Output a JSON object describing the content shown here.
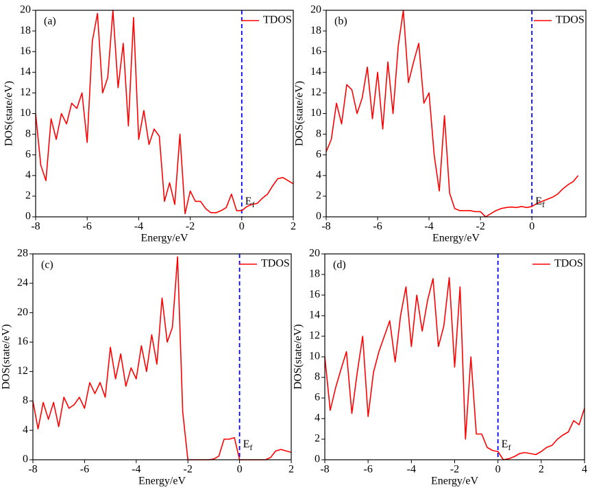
{
  "chart_data": [
    {
      "type": "line",
      "panel_label": "(a)",
      "xlabel": "Energy/eV",
      "ylabel": "DOS(state/eV)",
      "fermi_level": 0,
      "fermi_label": {
        "text": "E",
        "subscript": "f"
      },
      "xlim": [
        -8,
        2
      ],
      "ylim": [
        0,
        20
      ],
      "xticks": [
        -8,
        -6,
        -4,
        -2,
        0,
        2
      ],
      "yticks": [
        0,
        2,
        4,
        6,
        8,
        10,
        12,
        14,
        16,
        18,
        20
      ],
      "legend": "upper right",
      "series": [
        {
          "name": "TDOS",
          "color": "#ff0000",
          "x": [
            -8,
            -7.8,
            -7.6,
            -7.4,
            -7.2,
            -7,
            -6.8,
            -6.6,
            -6.4,
            -6.2,
            -6,
            -5.8,
            -5.6,
            -5.4,
            -5.2,
            -5,
            -4.8,
            -4.6,
            -4.4,
            -4.2,
            -4,
            -3.8,
            -3.6,
            -3.4,
            -3.2,
            -3,
            -2.8,
            -2.6,
            -2.4,
            -2.2,
            -2,
            -1.8,
            -1.6,
            -1.4,
            -1.2,
            -1,
            -0.8,
            -0.6,
            -0.4,
            -0.2,
            0,
            0.2,
            0.4,
            0.6,
            0.8,
            1,
            1.2,
            1.4,
            1.6,
            1.8,
            2
          ],
          "values": [
            10,
            5,
            3.5,
            9.5,
            7.5,
            10,
            9,
            11,
            10.5,
            12,
            7.2,
            17,
            19.7,
            12,
            13.5,
            20,
            12.5,
            16.8,
            8.8,
            19.3,
            7.5,
            10.3,
            7,
            8.5,
            7.8,
            1.5,
            3.3,
            1.2,
            8,
            0.3,
            2.5,
            1.5,
            1.5,
            0.8,
            0.4,
            0.4,
            0.6,
            0.9,
            2.2,
            0.6,
            0.6,
            1.0,
            1.2,
            1.3,
            1.8,
            2.2,
            3.0,
            3.7,
            3.8,
            3.5,
            3.2
          ]
        }
      ]
    },
    {
      "type": "line",
      "panel_label": "(b)",
      "xlabel": "Energy/eV",
      "ylabel": "DOS(state/eV)",
      "fermi_level": 0,
      "fermi_label": {
        "text": "E",
        "subscript": "f"
      },
      "xlim": [
        -8,
        2.1
      ],
      "ylim": [
        0,
        20
      ],
      "xticks": [
        -8,
        -6,
        -4,
        -2,
        0
      ],
      "yticks": [
        0,
        2,
        4,
        6,
        8,
        10,
        12,
        14,
        16,
        18,
        20
      ],
      "legend": "upper right",
      "series": [
        {
          "name": "TDOS",
          "color": "#ff0000",
          "x": [
            -8,
            -7.8,
            -7.6,
            -7.4,
            -7.2,
            -7,
            -6.8,
            -6.6,
            -6.4,
            -6.2,
            -6,
            -5.8,
            -5.6,
            -5.4,
            -5.2,
            -5,
            -4.8,
            -4.6,
            -4.4,
            -4.2,
            -4,
            -3.8,
            -3.6,
            -3.4,
            -3.2,
            -3,
            -2.8,
            -2.6,
            -2.4,
            -2.2,
            -2,
            -1.8,
            -1.6,
            -1.4,
            -1.2,
            -1,
            -0.8,
            -0.6,
            -0.4,
            -0.2,
            0,
            0.2,
            0.4,
            0.6,
            0.8,
            1,
            1.2,
            1.4,
            1.6,
            1.8
          ],
          "values": [
            6.3,
            7.5,
            11,
            9,
            12.8,
            12.3,
            10,
            11.5,
            14.5,
            9.5,
            14,
            8.5,
            15,
            10,
            16.5,
            20,
            13,
            15,
            16.8,
            11,
            12,
            6,
            2.5,
            9.8,
            2.3,
            0.8,
            0.6,
            0.6,
            0.6,
            0.5,
            0.5,
            0,
            0.3,
            0.6,
            0.8,
            0.9,
            0.95,
            0.9,
            1.0,
            0.9,
            1.0,
            1.3,
            1.5,
            1.7,
            1.9,
            2.2,
            2.7,
            3.1,
            3.4,
            4.0
          ]
        }
      ]
    },
    {
      "type": "line",
      "panel_label": "(c)",
      "xlabel": "Energy/eV",
      "ylabel": "DOS(state/eV)",
      "fermi_level": 0,
      "fermi_label": {
        "text": "E",
        "subscript": "f"
      },
      "xlim": [
        -8,
        2
      ],
      "ylim": [
        0,
        28
      ],
      "xticks": [
        -8,
        -6,
        -4,
        -2,
        0,
        2
      ],
      "yticks": [
        0,
        4,
        8,
        12,
        16,
        20,
        24,
        28
      ],
      "legend": "upper right",
      "series": [
        {
          "name": "TDOS",
          "color": "#ff0000",
          "x": [
            -8,
            -7.8,
            -7.6,
            -7.4,
            -7.2,
            -7,
            -6.8,
            -6.6,
            -6.4,
            -6.2,
            -6,
            -5.8,
            -5.6,
            -5.4,
            -5.2,
            -5,
            -4.8,
            -4.6,
            -4.4,
            -4.2,
            -4,
            -3.8,
            -3.6,
            -3.4,
            -3.2,
            -3,
            -2.8,
            -2.6,
            -2.4,
            -2.2,
            -2,
            -1.8,
            -1.6,
            -1.4,
            -1.2,
            -1,
            -0.8,
            -0.6,
            -0.4,
            -0.2,
            0,
            0.2,
            0.4,
            0.6,
            0.8,
            1,
            1.2,
            1.4,
            1.6,
            1.8,
            2
          ],
          "values": [
            8,
            4.2,
            7.8,
            5.5,
            7.8,
            4.5,
            8.5,
            7,
            7.5,
            8.5,
            7,
            10.5,
            9,
            10.5,
            8.5,
            15.3,
            11,
            14.4,
            10,
            12.5,
            11,
            15.5,
            12,
            17,
            13,
            22,
            16,
            18,
            27.6,
            6.5,
            0,
            0,
            0,
            0,
            0,
            0.1,
            0.5,
            2.8,
            2.8,
            3.0,
            0,
            0,
            0,
            0,
            0,
            0,
            0.3,
            1.2,
            1.4,
            1.2,
            1.0
          ]
        }
      ]
    },
    {
      "type": "line",
      "panel_label": "(d)",
      "xlabel": "Energy/eV",
      "ylabel": "DOS(state/eV)",
      "fermi_level": 0,
      "fermi_label": {
        "text": "E",
        "subscript": "f"
      },
      "xlim": [
        -8,
        4
      ],
      "ylim": [
        0,
        20
      ],
      "xticks": [
        -8,
        -6,
        -4,
        -2,
        0,
        2,
        4
      ],
      "yticks": [
        0,
        2,
        4,
        6,
        8,
        10,
        12,
        14,
        16,
        18,
        20
      ],
      "legend": "upper right",
      "series": [
        {
          "name": "TDOS",
          "color": "#ff0000",
          "x": [
            -8,
            -7.75,
            -7.5,
            -7.25,
            -7,
            -6.75,
            -6.5,
            -6.25,
            -6,
            -5.75,
            -5.5,
            -5.25,
            -5,
            -4.75,
            -4.5,
            -4.25,
            -4,
            -3.75,
            -3.5,
            -3.25,
            -3,
            -2.75,
            -2.5,
            -2.25,
            -2,
            -1.75,
            -1.5,
            -1.25,
            -1,
            -0.75,
            -0.5,
            -0.25,
            0,
            0.25,
            0.5,
            0.75,
            1,
            1.25,
            1.5,
            1.75,
            2,
            2.25,
            2.5,
            2.75,
            3,
            3.25,
            3.5,
            3.75,
            4
          ],
          "values": [
            10,
            4.8,
            7,
            8.8,
            10.5,
            4.5,
            8.5,
            12,
            4.2,
            8.5,
            10.5,
            12,
            13.5,
            9.5,
            14,
            16.8,
            11,
            16,
            12.5,
            15.5,
            17.6,
            11,
            13,
            17.7,
            9,
            16.8,
            2,
            10,
            2.5,
            2.5,
            1.2,
            0.9,
            0.8,
            0,
            0.1,
            0.3,
            0.6,
            0.7,
            0.6,
            0.5,
            0.8,
            1.2,
            1.4,
            2.0,
            2.4,
            2.7,
            3.8,
            3.4,
            5.0
          ]
        }
      ]
    }
  ]
}
